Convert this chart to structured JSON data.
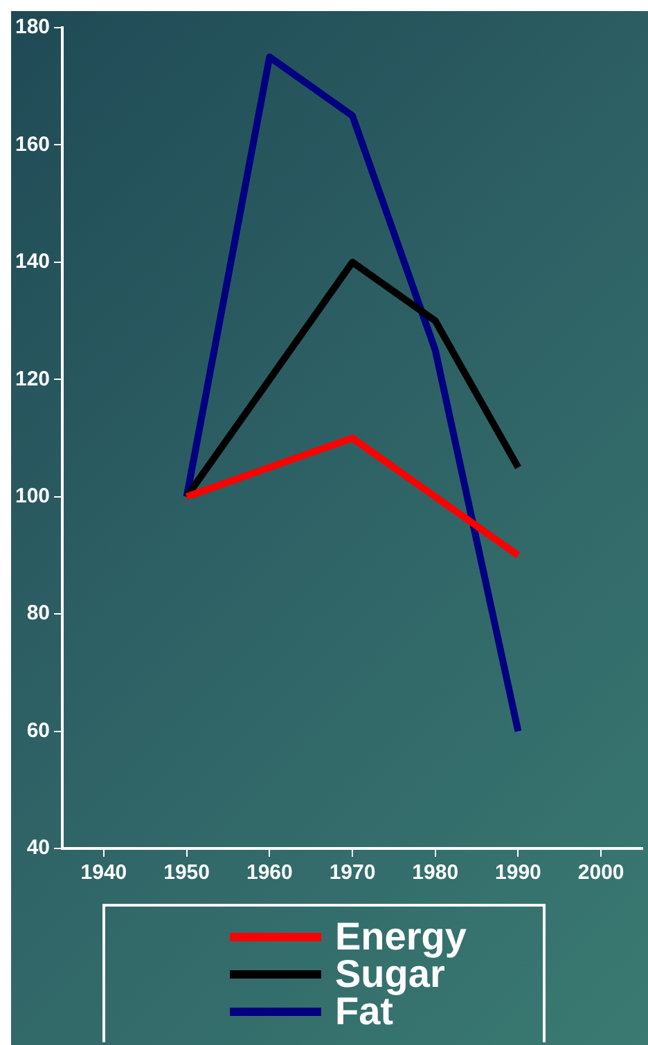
{
  "chart_data": {
    "type": "line",
    "x": [
      1950,
      1960,
      1970,
      1980,
      1990
    ],
    "series": [
      {
        "name": "Energy",
        "color": "#ff0000",
        "values": [
          100,
          105,
          110,
          100,
          90
        ]
      },
      {
        "name": "Sugar",
        "color": "#000000",
        "values": [
          100,
          120,
          140,
          130,
          105
        ]
      },
      {
        "name": "Fat",
        "color": "#000080",
        "values": [
          100,
          175,
          165,
          125,
          60
        ]
      }
    ],
    "xlim": [
      1935,
      2005
    ],
    "xticks": [
      1940,
      1950,
      1960,
      1970,
      1980,
      1990,
      2000
    ],
    "ylim": [
      40,
      180
    ],
    "yticks": [
      40,
      60,
      80,
      100,
      120,
      140,
      160,
      180
    ],
    "grid": false,
    "legend": "bottom",
    "marker": "none",
    "line_style": "solid"
  }
}
